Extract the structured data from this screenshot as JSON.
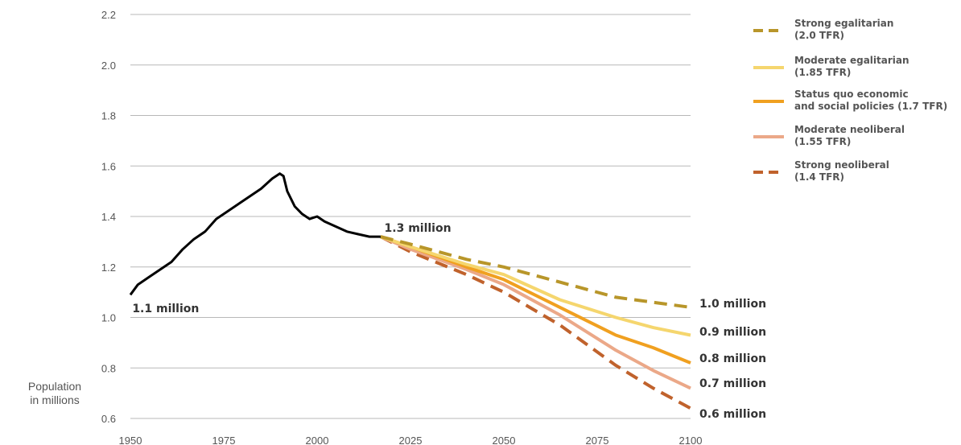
{
  "chart_data": {
    "type": "line",
    "title": "",
    "ylabel": [
      "Population",
      "in millions"
    ],
    "xlim": [
      1950,
      2100
    ],
    "ylim": [
      0.6,
      2.2
    ],
    "xticks": [
      1950,
      1975,
      2000,
      2025,
      2050,
      2075,
      2100
    ],
    "xtick_labels": [
      "1950",
      "1975",
      "2000",
      "2025",
      "2050",
      "2075",
      "2100"
    ],
    "yticks": [
      0.6,
      0.8,
      1.0,
      1.2,
      1.4,
      1.6,
      1.8,
      2.0,
      2.2
    ],
    "ytick_labels": [
      "0.6",
      "0.8",
      "1.0",
      "1.2",
      "1.4",
      "1.6",
      "1.8",
      "2.0",
      "2.2"
    ],
    "grid": true,
    "legend_position": "top-right",
    "historical": {
      "color": "#000000",
      "x": [
        1950,
        1952,
        1955,
        1958,
        1961,
        1964,
        1967,
        1970,
        1973,
        1976,
        1979,
        1982,
        1985,
        1988,
        1990,
        1991,
        1992,
        1994,
        1996,
        1998,
        2000,
        2002,
        2005,
        2008,
        2011,
        2014,
        2017
      ],
      "y": [
        1.09,
        1.13,
        1.16,
        1.19,
        1.22,
        1.27,
        1.31,
        1.34,
        1.39,
        1.42,
        1.45,
        1.48,
        1.51,
        1.55,
        1.57,
        1.56,
        1.5,
        1.44,
        1.41,
        1.39,
        1.4,
        1.38,
        1.36,
        1.34,
        1.33,
        1.32,
        1.32
      ]
    },
    "series": [
      {
        "name": "Strong egalitarian (2.0 TFR)",
        "legend_lines": [
          "Strong egalitarian",
          "(2.0 TFR)"
        ],
        "color": "#b8962a",
        "dashed": true,
        "x": [
          2017,
          2025,
          2040,
          2050,
          2065,
          2080,
          2090,
          2100
        ],
        "y": [
          1.32,
          1.29,
          1.23,
          1.2,
          1.14,
          1.08,
          1.06,
          1.04
        ],
        "end_label": "1.0 million"
      },
      {
        "name": "Moderate egalitarian (1.85 TFR)",
        "legend_lines": [
          "Moderate egalitarian",
          "(1.85 TFR)"
        ],
        "color": "#f5d66e",
        "dashed": false,
        "x": [
          2017,
          2025,
          2040,
          2050,
          2065,
          2080,
          2090,
          2100
        ],
        "y": [
          1.32,
          1.28,
          1.21,
          1.17,
          1.07,
          1.0,
          0.96,
          0.93
        ],
        "end_label": "0.9 million"
      },
      {
        "name": "Status quo economic and social policies (1.7 TFR)",
        "legend_lines": [
          "Status quo economic",
          "and social policies (1.7 TFR)"
        ],
        "color": "#f0a020",
        "dashed": false,
        "x": [
          2017,
          2025,
          2040,
          2050,
          2065,
          2080,
          2090,
          2100
        ],
        "y": [
          1.32,
          1.28,
          1.2,
          1.15,
          1.04,
          0.93,
          0.88,
          0.82
        ],
        "end_label": "0.8 million"
      },
      {
        "name": "Moderate neoliberal (1.55 TFR)",
        "legend_lines": [
          "Moderate neoliberal",
          "(1.55 TFR)"
        ],
        "color": "#eba888",
        "dashed": false,
        "x": [
          2017,
          2025,
          2040,
          2050,
          2065,
          2080,
          2090,
          2100
        ],
        "y": [
          1.32,
          1.27,
          1.19,
          1.13,
          1.01,
          0.87,
          0.79,
          0.72
        ],
        "end_label": "0.7 million"
      },
      {
        "name": "Strong neoliberal (1.4 TFR)",
        "legend_lines": [
          "Strong neoliberal",
          "(1.4 TFR)"
        ],
        "color": "#c0622c",
        "dashed": true,
        "x": [
          2017,
          2025,
          2040,
          2050,
          2065,
          2080,
          2090,
          2100
        ],
        "y": [
          1.32,
          1.26,
          1.17,
          1.1,
          0.97,
          0.81,
          0.72,
          0.64
        ],
        "end_label": "0.6 million"
      }
    ],
    "annotations": [
      {
        "text": "1.1 million",
        "x": 1950.5,
        "y": 1.02
      },
      {
        "text": "1.3 million",
        "x": 2018,
        "y": 1.34
      }
    ]
  }
}
